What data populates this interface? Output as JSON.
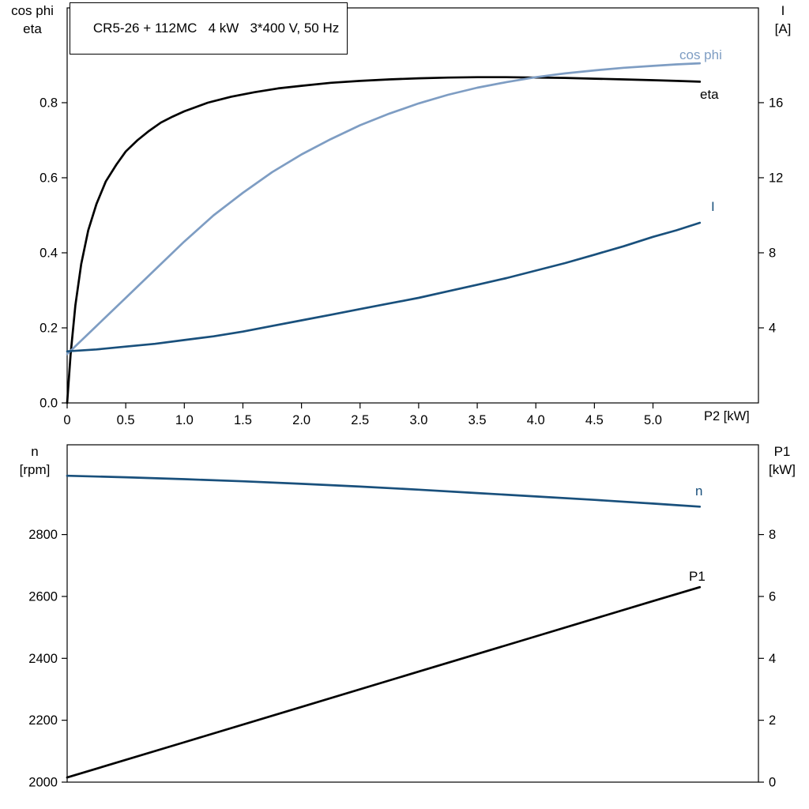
{
  "colors": {
    "black": "#000000",
    "steel_blue": "#7e9dc3",
    "dark_blue": "#19507c"
  },
  "chart_data": [
    {
      "type": "line",
      "title": "CR5-26 + 112MC   4 kW   3*400 V, 50 Hz",
      "ylabel_left_line1": "cos phi",
      "ylabel_left_line2": "eta",
      "ylabel_right_line1": "I",
      "ylabel_right_line2": "[A]",
      "xlabel": "P2 [kW]",
      "xlim": [
        0,
        5.9
      ],
      "ylim_left": [
        0,
        1.0526
      ],
      "ylim_right": [
        0,
        21.05
      ],
      "grid": false,
      "xticks": [
        0,
        0.5,
        1,
        1.5,
        2,
        2.5,
        3,
        3.5,
        4,
        4.5,
        5
      ],
      "xtick_labels": [
        "0",
        "0.5",
        "1.0",
        "1.5",
        "2.0",
        "2.5",
        "3.0",
        "3.5",
        "4.0",
        "4.5",
        "5.0"
      ],
      "yticks_left": [
        0,
        0.2,
        0.4,
        0.6,
        0.8
      ],
      "ytick_left_labels": [
        "0.0",
        "0.2",
        "0.4",
        "0.6",
        "0.8"
      ],
      "yticks_right": [
        4,
        8,
        12,
        16
      ],
      "ytick_right_labels": [
        "4",
        "8",
        "12",
        "16"
      ],
      "series": [
        {
          "name": "eta",
          "label": "eta",
          "axis": "left",
          "color": "black",
          "x": [
            0,
            0.03,
            0.07,
            0.12,
            0.18,
            0.25,
            0.33,
            0.42,
            0.5,
            0.6,
            0.7,
            0.8,
            0.9,
            1.0,
            1.2,
            1.4,
            1.6,
            1.8,
            2.0,
            2.25,
            2.5,
            2.75,
            3.0,
            3.25,
            3.5,
            3.75,
            4.0,
            4.25,
            4.5,
            4.75,
            5.0,
            5.2,
            5.4
          ],
          "y": [
            0,
            0.13,
            0.26,
            0.37,
            0.46,
            0.53,
            0.59,
            0.635,
            0.67,
            0.7,
            0.725,
            0.747,
            0.763,
            0.777,
            0.8,
            0.816,
            0.828,
            0.838,
            0.845,
            0.853,
            0.858,
            0.862,
            0.865,
            0.867,
            0.868,
            0.868,
            0.867,
            0.866,
            0.864,
            0.862,
            0.86,
            0.858,
            0.856
          ]
        },
        {
          "name": "cos-phi",
          "label": "cos phi",
          "axis": "left",
          "color": "steel_blue",
          "x": [
            0,
            0.25,
            0.5,
            0.75,
            1.0,
            1.25,
            1.5,
            1.75,
            2.0,
            2.25,
            2.5,
            2.75,
            3.0,
            3.25,
            3.5,
            3.75,
            4.0,
            4.25,
            4.5,
            4.75,
            5.0,
            5.2,
            5.4
          ],
          "y": [
            0.13,
            0.205,
            0.28,
            0.355,
            0.43,
            0.5,
            0.56,
            0.615,
            0.662,
            0.703,
            0.74,
            0.771,
            0.798,
            0.821,
            0.84,
            0.855,
            0.868,
            0.878,
            0.886,
            0.893,
            0.898,
            0.902,
            0.905
          ]
        },
        {
          "name": "current",
          "label": "I",
          "axis": "right",
          "color": "dark_blue",
          "x": [
            0,
            0.25,
            0.5,
            0.75,
            1.0,
            1.25,
            1.5,
            1.75,
            2.0,
            2.25,
            2.5,
            2.75,
            3.0,
            3.25,
            3.5,
            3.75,
            4.0,
            4.25,
            4.5,
            4.75,
            5.0,
            5.2,
            5.4
          ],
          "y": [
            2.75,
            2.85,
            3.0,
            3.15,
            3.35,
            3.55,
            3.8,
            4.1,
            4.4,
            4.7,
            5.0,
            5.3,
            5.6,
            5.95,
            6.3,
            6.65,
            7.05,
            7.45,
            7.9,
            8.35,
            8.85,
            9.2,
            9.6
          ]
        }
      ]
    },
    {
      "type": "line",
      "ylabel_left_line1": "n",
      "ylabel_left_line2": "[rpm]",
      "ylabel_right_line1": "P1",
      "ylabel_right_line2": "[kW]",
      "xlabel": "",
      "xlim": [
        0,
        5.9
      ],
      "ylim_left": [
        2000,
        3090
      ],
      "ylim_right": [
        0,
        10.9
      ],
      "grid": false,
      "xticks": [],
      "xtick_labels": [],
      "yticks_left": [
        2000,
        2200,
        2400,
        2600,
        2800
      ],
      "ytick_left_labels": [
        "2000",
        "2200",
        "2400",
        "2600",
        "2800"
      ],
      "yticks_right": [
        0,
        2,
        4,
        6,
        8
      ],
      "ytick_right_labels": [
        "0",
        "2",
        "4",
        "6",
        "8"
      ],
      "series": [
        {
          "name": "speed",
          "label": "n",
          "axis": "left",
          "color": "dark_blue",
          "x": [
            0,
            0.5,
            1.0,
            1.5,
            2.0,
            2.5,
            3.0,
            3.5,
            4.0,
            4.5,
            5.0,
            5.2,
            5.4
          ],
          "y": [
            2990,
            2985,
            2979,
            2972,
            2964,
            2955,
            2945,
            2934,
            2923,
            2912,
            2900,
            2895,
            2890
          ]
        },
        {
          "name": "p1",
          "label": "P1",
          "axis": "right",
          "color": "black",
          "x": [
            0,
            1.0,
            2.0,
            3.0,
            4.0,
            5.0,
            5.4
          ],
          "y": [
            0.15,
            1.29,
            2.43,
            3.57,
            4.71,
            5.85,
            6.3
          ]
        }
      ]
    }
  ]
}
